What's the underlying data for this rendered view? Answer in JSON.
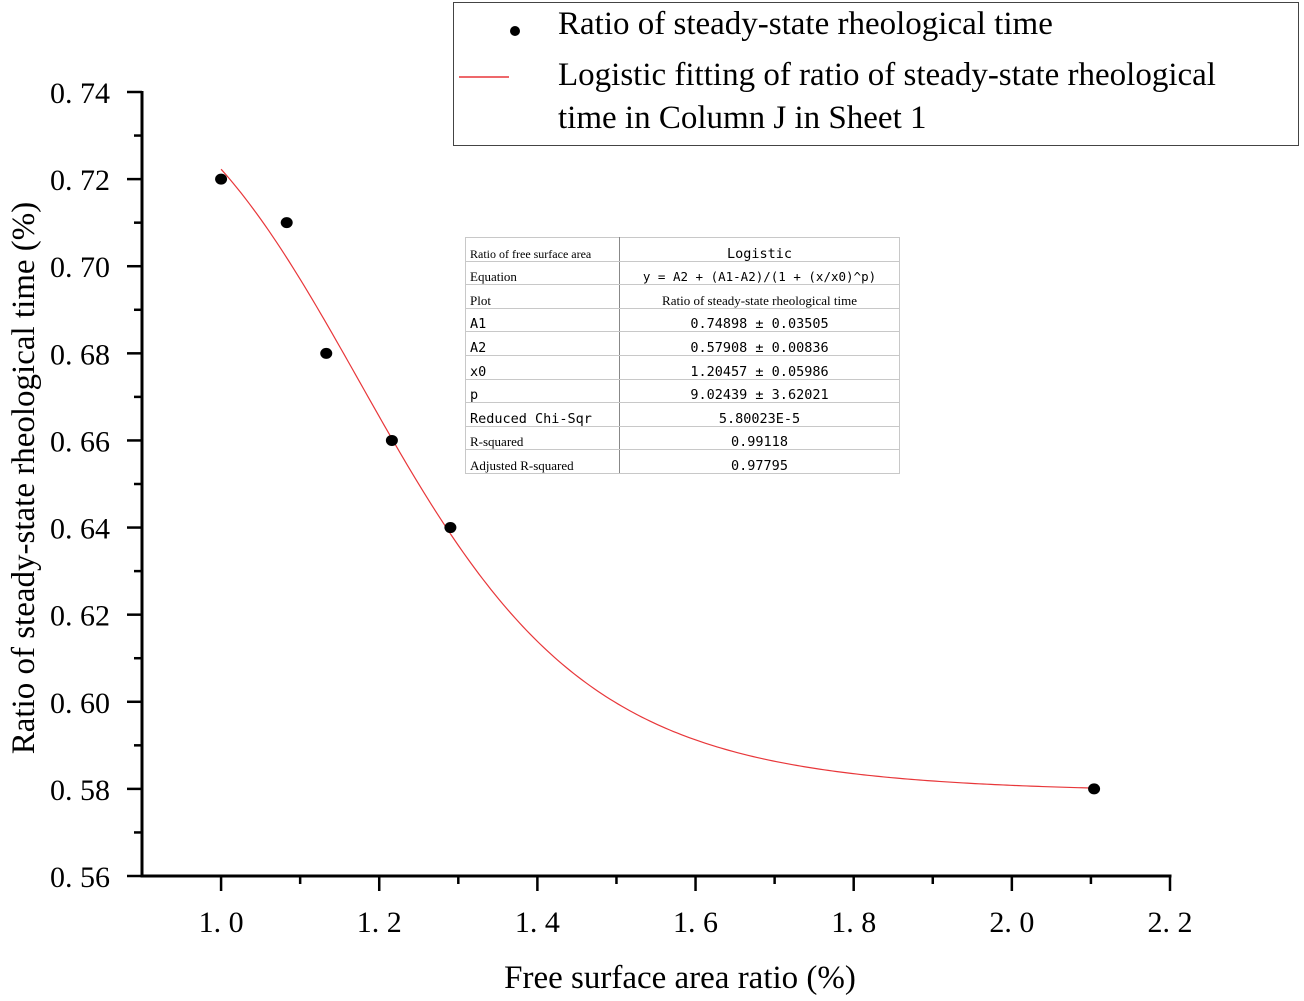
{
  "chart_data": {
    "type": "scatter",
    "title": "",
    "xlabel": "Free surface area ratio (%)",
    "ylabel": "Ratio of steady-state rheological time  (%)",
    "xlim": [
      0.9,
      2.2
    ],
    "ylim": [
      0.56,
      0.74
    ],
    "x_ticks": [
      "1.0",
      "1.2",
      "1.4",
      "1.6",
      "1.8",
      "2.0",
      "2.2"
    ],
    "x_tick_values": [
      1.0,
      1.2,
      1.4,
      1.6,
      1.8,
      2.0,
      2.2
    ],
    "y_ticks": [
      "0.56",
      "0.58",
      "0.60",
      "0.62",
      "0.64",
      "0.66",
      "0.68",
      "0.70",
      "0.72",
      "0.74"
    ],
    "y_tick_values": [
      0.56,
      0.58,
      0.6,
      0.62,
      0.64,
      0.66,
      0.68,
      0.7,
      0.72,
      0.74
    ],
    "grid": false,
    "legend_position": "top-right (outside plot, overlapping top)",
    "series": [
      {
        "name": "Ratio of steady-state rheological time",
        "type": "scatter",
        "color": "#000000",
        "x": [
          1.0,
          1.083,
          1.133,
          1.216,
          1.29,
          2.104
        ],
        "y": [
          0.72,
          0.71,
          0.68,
          0.66,
          0.64,
          0.58
        ]
      },
      {
        "name": "Logistic fitting of ratio of steady-state rheological time in Column J in Sheet 1",
        "type": "line",
        "color": "#e8373a",
        "model": "y = A2 + (A1-A2)/(1 + (x/x0)^p)",
        "params": {
          "A1": 0.74898,
          "A2": 0.57908,
          "x0": 1.20457,
          "p": 9.02439
        },
        "x_range": [
          1.0,
          2.104
        ]
      }
    ],
    "fit_table": [
      {
        "key": "Ratio of free surface area",
        "value": "Logistic"
      },
      {
        "key": "Equation",
        "value": "y = A2 + (A1-A2)/(1 + (x/x0)^p)"
      },
      {
        "key": "Plot",
        "value": "Ratio of steady-state rheological time"
      },
      {
        "key": "A1",
        "value": "0.74898 ± 0.03505"
      },
      {
        "key": "A2",
        "value": "0.57908 ± 0.00836"
      },
      {
        "key": "x0",
        "value": "1.20457 ± 0.05986"
      },
      {
        "key": "p",
        "value": "9.02439 ± 3.62021"
      },
      {
        "key": "Reduced Chi-Sqr",
        "value": "5.80023E-5"
      },
      {
        "key": "R-squared",
        "value": "0.99118"
      },
      {
        "key": "Adjusted R-squared",
        "value": "0.97795"
      }
    ]
  },
  "legend": {
    "scatter_label": "Ratio of steady-state rheological time",
    "fit_label_line1": "Logistic fitting of ratio of steady-state rheological",
    "fit_label_line2": "time in Column J in Sheet 1"
  },
  "axes": {
    "xlabel": "Free surface area ratio (%)",
    "ylabel": "Ratio of steady-state rheological time  (%)",
    "x_tick_labels": [
      "1. 0",
      "1. 2",
      "1. 4",
      "1. 6",
      "1. 8",
      "2. 0",
      "2. 2"
    ],
    "y_tick_labels": [
      "0. 74",
      "0. 72",
      "0. 70",
      "0. 68",
      "0. 66",
      "0. 64",
      "0. 62",
      "0. 60",
      "0. 58",
      "0. 56"
    ]
  },
  "table": {
    "rows": [
      {
        "key": "Ratio of free surface area",
        "value": "Logistic"
      },
      {
        "key": "Equation",
        "value": "y = A2 + (A1-A2)/(1 + (x/x0)^p)"
      },
      {
        "key": "Plot",
        "value": "Ratio of steady-state rheological time"
      },
      {
        "key": "A1",
        "value": "0.74898 ± 0.03505"
      },
      {
        "key": "A2",
        "value": "0.57908 ± 0.00836"
      },
      {
        "key": "x0",
        "value": "1.20457 ± 0.05986"
      },
      {
        "key": "p",
        "value": "9.02439 ± 3.62021"
      },
      {
        "key": "Reduced Chi-Sqr",
        "value": "5.80023E-5"
      },
      {
        "key": "R-squared",
        "value": "0.99118"
      },
      {
        "key": "Adjusted R-squared",
        "value": "0.97795"
      }
    ]
  },
  "colors": {
    "fit_line": "#e8373a",
    "points": "#000000",
    "axis": "#000000"
  }
}
